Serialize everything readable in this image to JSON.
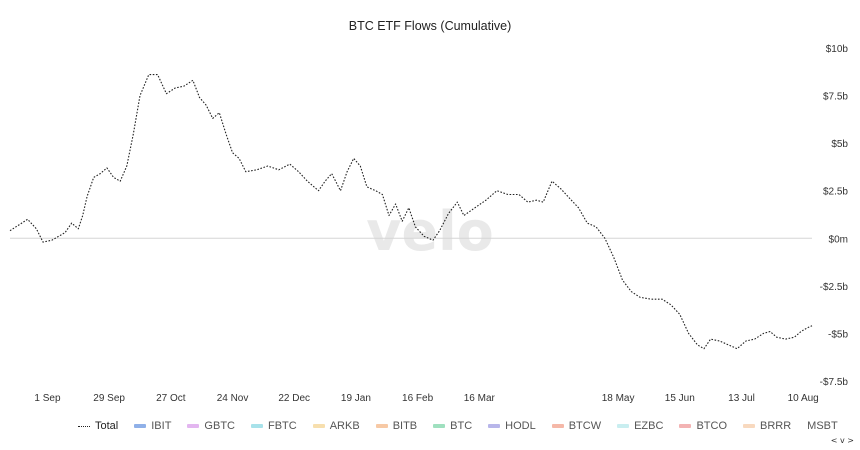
{
  "chart_data": {
    "type": "line",
    "title": "BTC ETF Flows (Cumulative)",
    "watermark": "velo",
    "y_axis": {
      "min": -7.5,
      "max": 10,
      "position": "right",
      "unit": "billion USD",
      "ticks": [
        {
          "value": 10,
          "label": "$10b"
        },
        {
          "value": 7.5,
          "label": "$7.5b"
        },
        {
          "value": 5,
          "label": "$5b"
        },
        {
          "value": 2.5,
          "label": "$2.5b"
        },
        {
          "value": 0,
          "label": "$0m"
        },
        {
          "value": -2.5,
          "label": "-$2.5b"
        },
        {
          "value": -5,
          "label": "-$5b"
        },
        {
          "value": -7.5,
          "label": "-$7.5b"
        }
      ]
    },
    "x_axis": {
      "start": "2025-08-15",
      "end": "2026-08-14",
      "ticks": [
        {
          "date": "2025-09-01",
          "label": "1 Sep"
        },
        {
          "date": "2025-09-29",
          "label": "29 Sep"
        },
        {
          "date": "2025-10-27",
          "label": "27 Oct"
        },
        {
          "date": "2025-11-24",
          "label": "24 Nov"
        },
        {
          "date": "2025-12-22",
          "label": "22 Dec"
        },
        {
          "date": "2026-01-19",
          "label": "19 Jan"
        },
        {
          "date": "2026-02-16",
          "label": "16 Feb"
        },
        {
          "date": "2026-03-16",
          "label": "16 Mar"
        },
        {
          "date": "2026-05-18",
          "label": "18 May"
        },
        {
          "date": "2026-06-15",
          "label": "15 Jun"
        },
        {
          "date": "2026-07-13",
          "label": "13 Jul"
        },
        {
          "date": "2026-08-10",
          "label": "10 Aug"
        }
      ]
    },
    "zero_line": true,
    "series": [
      {
        "name": "Total",
        "color": "#222222",
        "style": "dotted",
        "points": [
          [
            "2025-08-15",
            0.4
          ],
          [
            "2025-08-19",
            0.7
          ],
          [
            "2025-08-23",
            1.0
          ],
          [
            "2025-08-27",
            0.5
          ],
          [
            "2025-08-30",
            -0.2
          ],
          [
            "2025-09-03",
            -0.1
          ],
          [
            "2025-09-06",
            0.1
          ],
          [
            "2025-09-09",
            0.3
          ],
          [
            "2025-09-12",
            0.8
          ],
          [
            "2025-09-15",
            0.5
          ],
          [
            "2025-09-17",
            1.2
          ],
          [
            "2025-09-19",
            2.2
          ],
          [
            "2025-09-22",
            3.2
          ],
          [
            "2025-09-25",
            3.4
          ],
          [
            "2025-09-28",
            3.7
          ],
          [
            "2025-10-01",
            3.2
          ],
          [
            "2025-10-04",
            3.0
          ],
          [
            "2025-10-07",
            3.8
          ],
          [
            "2025-10-10",
            5.5
          ],
          [
            "2025-10-13",
            7.5
          ],
          [
            "2025-10-17",
            8.6
          ],
          [
            "2025-10-21",
            8.6
          ],
          [
            "2025-10-25",
            7.6
          ],
          [
            "2025-10-29",
            7.9
          ],
          [
            "2025-11-02",
            8.0
          ],
          [
            "2025-11-06",
            8.3
          ],
          [
            "2025-11-09",
            7.4
          ],
          [
            "2025-11-12",
            7.0
          ],
          [
            "2025-11-15",
            6.3
          ],
          [
            "2025-11-18",
            6.6
          ],
          [
            "2025-11-21",
            5.5
          ],
          [
            "2025-11-24",
            4.5
          ],
          [
            "2025-11-27",
            4.2
          ],
          [
            "2025-11-30",
            3.5
          ],
          [
            "2025-12-05",
            3.6
          ],
          [
            "2025-12-10",
            3.8
          ],
          [
            "2025-12-15",
            3.6
          ],
          [
            "2025-12-20",
            3.9
          ],
          [
            "2025-12-24",
            3.5
          ],
          [
            "2025-12-28",
            3.0
          ],
          [
            "2026-01-02",
            2.5
          ],
          [
            "2026-01-05",
            3.0
          ],
          [
            "2026-01-08",
            3.4
          ],
          [
            "2026-01-12",
            2.5
          ],
          [
            "2026-01-15",
            3.5
          ],
          [
            "2026-01-18",
            4.2
          ],
          [
            "2026-01-21",
            3.8
          ],
          [
            "2026-01-24",
            2.7
          ],
          [
            "2026-01-28",
            2.5
          ],
          [
            "2026-01-31",
            2.3
          ],
          [
            "2026-02-03",
            1.2
          ],
          [
            "2026-02-06",
            1.8
          ],
          [
            "2026-02-09",
            0.9
          ],
          [
            "2026-02-12",
            1.6
          ],
          [
            "2026-02-15",
            0.6
          ],
          [
            "2026-02-19",
            0.1
          ],
          [
            "2026-02-23",
            -0.1
          ],
          [
            "2026-02-26",
            0.4
          ],
          [
            "2026-03-02",
            1.3
          ],
          [
            "2026-03-06",
            1.9
          ],
          [
            "2026-03-09",
            1.2
          ],
          [
            "2026-03-14",
            1.6
          ],
          [
            "2026-03-19",
            2.0
          ],
          [
            "2026-03-24",
            2.5
          ],
          [
            "2026-03-29",
            2.3
          ],
          [
            "2026-04-03",
            2.3
          ],
          [
            "2026-04-07",
            1.9
          ],
          [
            "2026-04-11",
            2.0
          ],
          [
            "2026-04-14",
            1.9
          ],
          [
            "2026-04-18",
            3.0
          ],
          [
            "2026-04-22",
            2.6
          ],
          [
            "2026-04-26",
            2.1
          ],
          [
            "2026-04-30",
            1.6
          ],
          [
            "2026-05-04",
            0.8
          ],
          [
            "2026-05-08",
            0.6
          ],
          [
            "2026-05-12",
            0.0
          ],
          [
            "2026-05-16",
            -1.0
          ],
          [
            "2026-05-20",
            -2.2
          ],
          [
            "2026-05-24",
            -2.8
          ],
          [
            "2026-05-28",
            -3.1
          ],
          [
            "2026-06-02",
            -3.2
          ],
          [
            "2026-06-07",
            -3.2
          ],
          [
            "2026-06-11",
            -3.5
          ],
          [
            "2026-06-15",
            -4.0
          ],
          [
            "2026-06-19",
            -5.0
          ],
          [
            "2026-06-23",
            -5.6
          ],
          [
            "2026-06-26",
            -5.8
          ],
          [
            "2026-06-29",
            -5.3
          ],
          [
            "2026-07-03",
            -5.4
          ],
          [
            "2026-07-07",
            -5.6
          ],
          [
            "2026-07-11",
            -5.8
          ],
          [
            "2026-07-15",
            -5.4
          ],
          [
            "2026-07-19",
            -5.3
          ],
          [
            "2026-07-23",
            -5.0
          ],
          [
            "2026-07-26",
            -4.9
          ],
          [
            "2026-07-29",
            -5.2
          ],
          [
            "2026-08-02",
            -5.3
          ],
          [
            "2026-08-06",
            -5.2
          ],
          [
            "2026-08-09",
            -4.9
          ],
          [
            "2026-08-12",
            -4.7
          ],
          [
            "2026-08-14",
            -4.6
          ]
        ]
      }
    ],
    "legend": [
      {
        "name": "Total",
        "color": "#222222",
        "style": "dotted"
      },
      {
        "name": "IBIT",
        "color": "#8fb0e8",
        "style": "swatch"
      },
      {
        "name": "GBTC",
        "color": "#e3b6f0",
        "style": "swatch"
      },
      {
        "name": "FBTC",
        "color": "#a8e2ea",
        "style": "swatch"
      },
      {
        "name": "ARKB",
        "color": "#f7dfae",
        "style": "swatch"
      },
      {
        "name": "BITB",
        "color": "#f7c9a5",
        "style": "swatch"
      },
      {
        "name": "BTC",
        "color": "#9fe0bf",
        "style": "swatch"
      },
      {
        "name": "HODL",
        "color": "#b8b6ea",
        "style": "swatch"
      },
      {
        "name": "BTCW",
        "color": "#f5b8a8",
        "style": "swatch"
      },
      {
        "name": "EZBC",
        "color": "#c9eef0",
        "style": "swatch"
      },
      {
        "name": "BTCO",
        "color": "#f3b3b3",
        "style": "swatch"
      },
      {
        "name": "BRRR",
        "color": "#f8d9bf",
        "style": "swatch"
      },
      {
        "name": "MSBT",
        "color": "#ffffff",
        "style": "none"
      }
    ],
    "navigation_label": "< v >"
  }
}
